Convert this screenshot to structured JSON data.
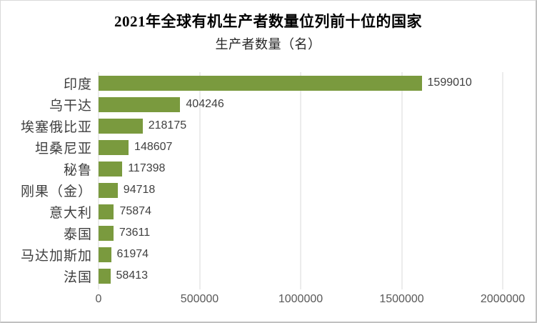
{
  "chart_data": {
    "type": "bar",
    "orientation": "horizontal",
    "title": "2021年全球有机生产者数量位列前十位的国家",
    "subtitle": "生产者数量（名）",
    "categories": [
      "印度",
      "乌干达",
      "埃塞俄比亚",
      "坦桑尼亚",
      "秘鲁",
      "刚果（金）",
      "意大利",
      "泰国",
      "马达加斯加",
      "法国"
    ],
    "values": [
      1599010,
      404246,
      218175,
      148607,
      117398,
      94718,
      75874,
      73611,
      61974,
      58413
    ],
    "data_labels": [
      "1599010",
      "404246",
      "218175",
      "148607",
      "117398",
      "94718",
      "75874",
      "73611",
      "61974",
      "58413"
    ],
    "x_ticks": [
      0,
      500000,
      1000000,
      1500000,
      2000000
    ],
    "x_tick_labels": [
      "0",
      "500000",
      "1000000",
      "1500000",
      "2000000"
    ],
    "xlim": [
      0,
      2000000
    ],
    "grid": "vertical",
    "legend": "none"
  },
  "style": {
    "bar_color": "#7A9A3E",
    "gridline_color": "#D9D9D9",
    "title_color": "#000000",
    "subtitle_color": "#262626",
    "category_label_color": "#3F3F3F",
    "data_label_color": "#404040",
    "tick_label_color": "#595959",
    "background_color": "#FFFFFF"
  }
}
